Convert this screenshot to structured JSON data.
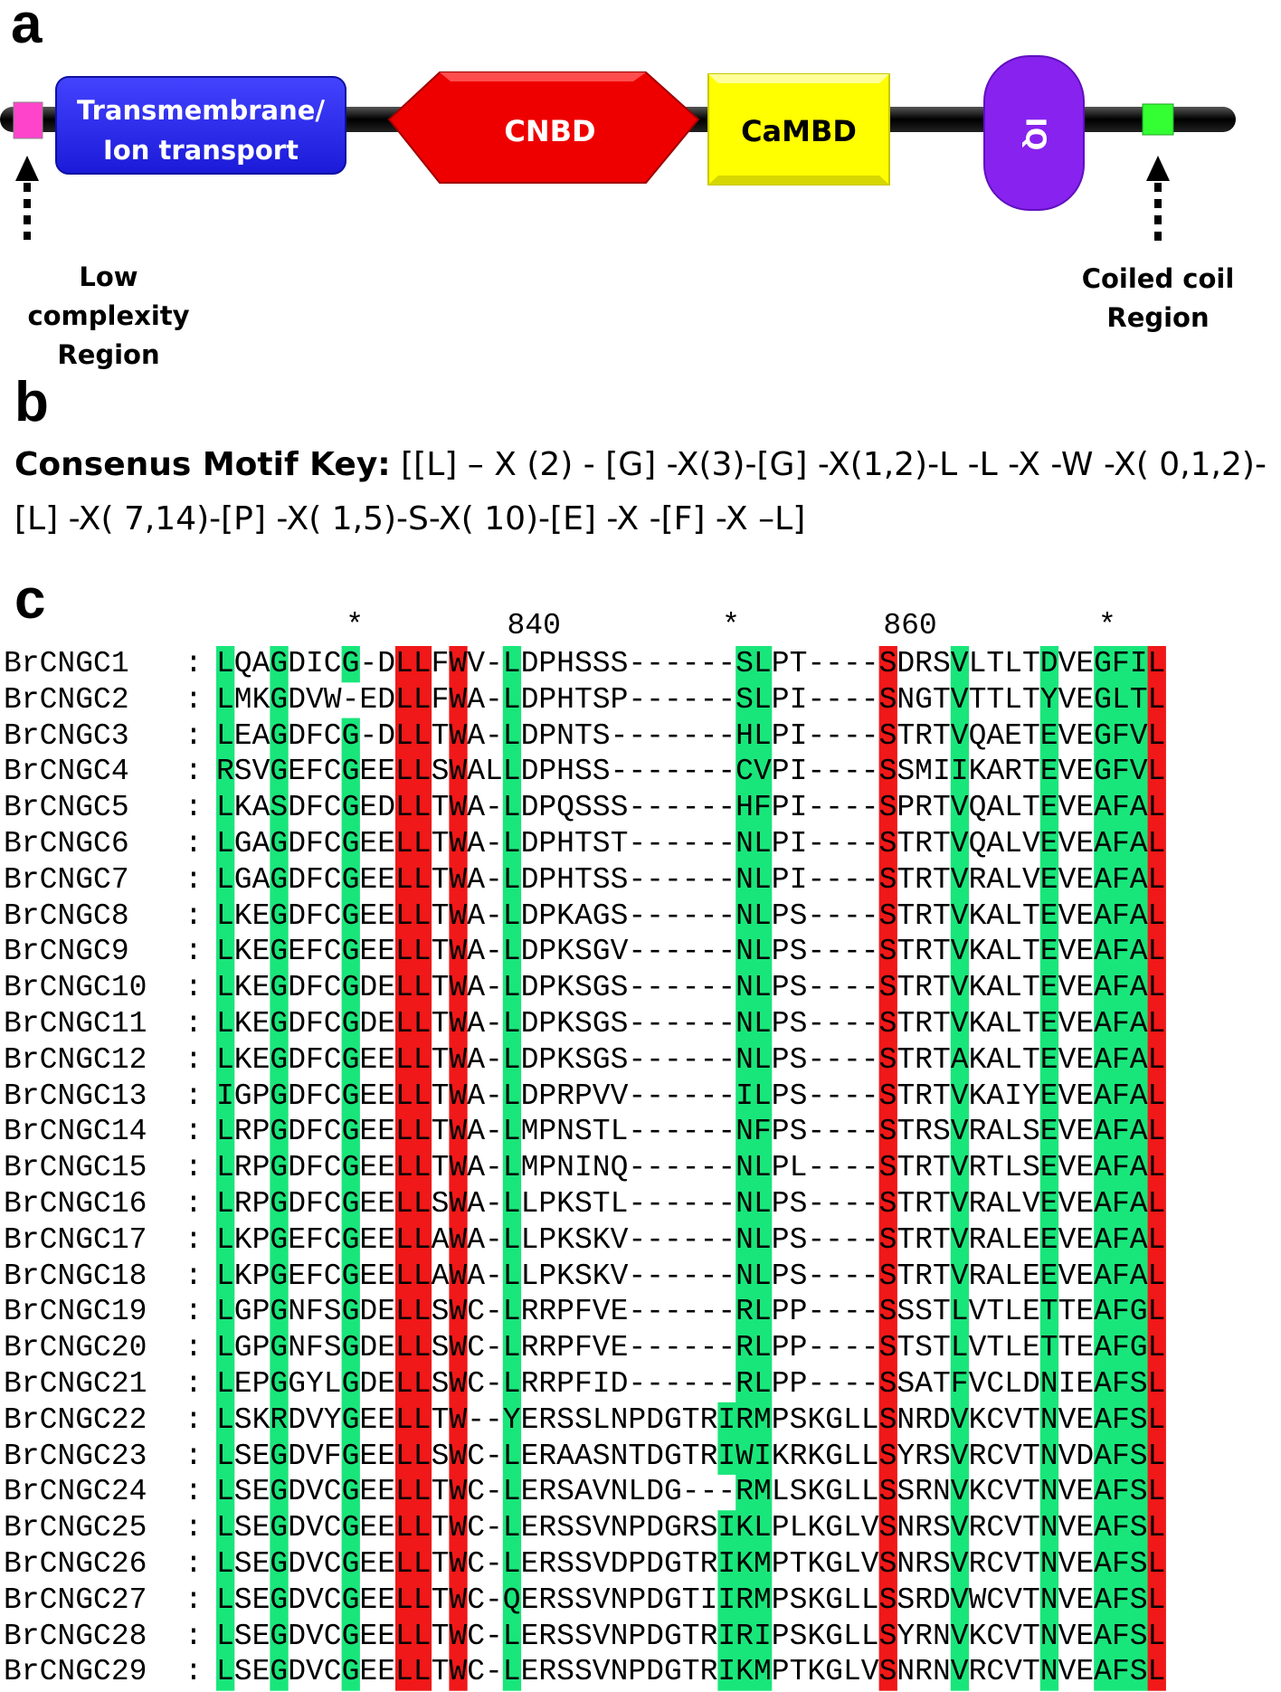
{
  "panels": {
    "a": "a",
    "b": "b",
    "c": "c"
  },
  "domains": {
    "transmembrane_line1": "Transmembrane/",
    "transmembrane_line2": "Ion transport",
    "cnbd": "CNBD",
    "camdb": "CaMBD",
    "iq": "IQ",
    "low_complexity_line1": "Low complexity",
    "low_complexity_line2": "Region",
    "coiled_coil_line1": "Coiled coil",
    "coiled_coil_line2": "Region"
  },
  "colors": {
    "low_complexity": "#ff44cc",
    "transmembrane": "#2222ee",
    "cnbd": "#ee0000",
    "camdb": "#ffff00",
    "iq": "#8822ee",
    "coiled_coil": "#33ff33",
    "conserved_green": "#19e67a",
    "conserved_red": "#f01818"
  },
  "motif": {
    "key_label": "Consenus Motif Key:",
    "line1": "[[L] – X (2) - [G] -X(3)-[G] -X(1,2)-L -L -X -W -X( 0,1,2)-",
    "line2": "[L] -X( 7,14)-[P] -X( 1,5)-S-X( 10)-[E] -X -[F] -X –L]"
  },
  "ruler": "         *        840         *        860         *",
  "alignment": [
    {
      "name": "BrCNGC1",
      "seq": "LQAGDICG-DLLFWV-LDPHSSS------SLPT----SDRSVLTLTDVEGFIL"
    },
    {
      "name": "BrCNGC2",
      "seq": "LMKGDVW-EDLLFWA-LDPHTSP------SLPI----SNGTVTTLTYVEGLTL"
    },
    {
      "name": "BrCNGC3",
      "seq": "LEAGDFCG-DLLTWA-LDPNTS-------HLPI----STRTVQAETEVEGFVL"
    },
    {
      "name": "BrCNGC4",
      "seq": "RSVGEFCGEELLSWALLDPHSS-------CVPI----SSMIIKARTEVEGFVL"
    },
    {
      "name": "BrCNGC5",
      "seq": "LKASDFCGEDLLTWA-LDPQSSS------HFPI----SPRTVQALTEVEAFAL"
    },
    {
      "name": "BrCNGC6",
      "seq": "LGAGDFCGEELLTWA-LDPHTST------NLPI----STRTVQALVEVEAFAL"
    },
    {
      "name": "BrCNGC7",
      "seq": "LGAGDFCGEELLTWA-LDPHTSS------NLPI----STRTVRALVEVEAFAL"
    },
    {
      "name": "BrCNGC8",
      "seq": "LKEGDFCGEELLTWA-LDPKAGS------NLPS----STRTVKALTEVEAFAL"
    },
    {
      "name": "BrCNGC9",
      "seq": "LKEGEFCGEELLTWA-LDPKSGV------NLPS----STRTVKALTEVEAFAL"
    },
    {
      "name": "BrCNGC10",
      "seq": "LKEGDFCGDELLTWA-LDPKSGS------NLPS----STRTVKALTEVEAFAL"
    },
    {
      "name": "BrCNGC11",
      "seq": "LKEGDFCGDELLTWA-LDPKSGS------NLPS----STRTVKALTEVEAFAL"
    },
    {
      "name": "BrCNGC12",
      "seq": "LKEGDFCGEELLTWA-LDPKSGS------NLPS----STRTAKALTEVEAFAL"
    },
    {
      "name": "BrCNGC13",
      "seq": "IGPGDFCGEELLTWA-LDPRPVV------ILPS----STRTVKAIYEVEAFAL"
    },
    {
      "name": "BrCNGC14",
      "seq": "LRPGDFCGEELLTWA-LMPNSTL------NFPS----STRSVRALSEVEAFAL"
    },
    {
      "name": "BrCNGC15",
      "seq": "LRPGDFCGEELLTWA-LMPNINQ------NLPL----STRTVRTLSEVEAFAL"
    },
    {
      "name": "BrCNGC16",
      "seq": "LRPGDFCGEELLSWA-LLPKSTL------NLPS----STRTVRALVEVEAFAL"
    },
    {
      "name": "BrCNGC17",
      "seq": "LKPGEFCGEELLAWA-LLPKSKV------NLPS----STRTVRALEEVEAFAL"
    },
    {
      "name": "BrCNGC18",
      "seq": "LKPGEFCGEELLAWA-LLPKSKV------NLPS----STRTVRALEEVEAFAL"
    },
    {
      "name": "BrCNGC19",
      "seq": "LGPGNFSGDELLSWC-LRRPFVE------RLPP----SSSTLVTLETTEAFGL"
    },
    {
      "name": "BrCNGC20",
      "seq": "LGPGNFSGDELLSWC-LRRPFVE------RLPP----STSTLVTLETTEAFGL"
    },
    {
      "name": "BrCNGC21",
      "seq": "LEPGGYLGDELLSWC-LRRPFID------RLPP----SSATFVCLDNIEAFSL"
    },
    {
      "name": "BrCNGC22",
      "seq": "LSKRDVYGEELLTW--YERSSLNPDGTRIRMPSKGLLSNRDVKCVTNVEAFSL"
    },
    {
      "name": "BrCNGC23",
      "seq": "LSEGDVFGEELLSWC-LERAASNTDGTRIWIKRKGLLSYRSVRCVTNVDAFSL"
    },
    {
      "name": "BrCNGC24",
      "seq": "LSEGDVCGEELLTWC-LERSAVNLDG---RMLSKGLLSSRNVKCVTNVEAFSL"
    },
    {
      "name": "BrCNGC25",
      "seq": "LSEGDVCGEELLTWC-LERSSVNPDGRSIKLPLKGLVSNRSVRCVTNVEAFSL"
    },
    {
      "name": "BrCNGC26",
      "seq": "LSEGDVCGEELLTWC-LERSSVDPDGTRIKMPTKGLVSNRSVRCVTNVEAFSL"
    },
    {
      "name": "BrCNGC27",
      "seq": "LSEGDVCGEELLTWC-QERSSVNPDGTIIRMPSKGLLSSRDVWCVTNVEAFSL"
    },
    {
      "name": "BrCNGC28",
      "seq": "LSEGDVCGEELLTWC-LERSSVNPDGTRIRIPSKGLLSYRNVKCVTNVEAFSL"
    },
    {
      "name": "BrCNGC29",
      "seq": "LSEGDVCGEELLTWC-LERSSVNPDGTRIKMPTKGLVSNRNVRCVTNVEAFSL"
    }
  ]
}
